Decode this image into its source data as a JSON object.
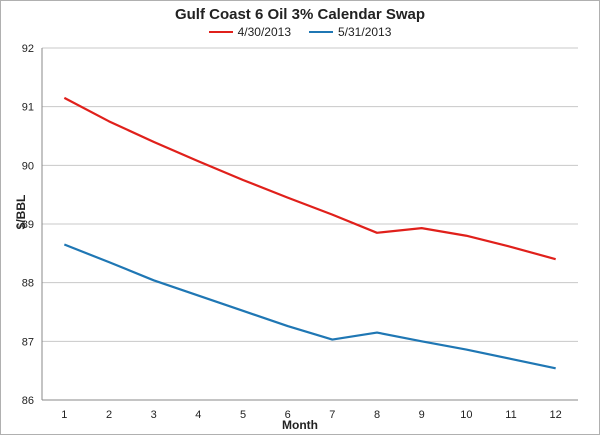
{
  "chart_data": {
    "type": "line",
    "title": "Gulf Coast 6 Oil 3% Calendar Swap",
    "xlabel": "Month",
    "ylabel": "$/BBL",
    "x": [
      1,
      2,
      3,
      4,
      5,
      6,
      7,
      8,
      9,
      10,
      11,
      12
    ],
    "ylim": [
      86,
      92
    ],
    "yticks": [
      86,
      87,
      88,
      89,
      90,
      91,
      92
    ],
    "grid": true,
    "legend_position": "top",
    "series": [
      {
        "name": "4/30/2013",
        "color": "#e0201b",
        "values": [
          91.15,
          90.75,
          90.4,
          90.07,
          89.75,
          89.45,
          89.16,
          88.85,
          88.93,
          88.8,
          88.61,
          88.4
        ]
      },
      {
        "name": "5/31/2013",
        "color": "#1f77b4",
        "values": [
          88.65,
          88.35,
          88.04,
          87.78,
          87.52,
          87.26,
          87.03,
          87.15,
          87.0,
          86.86,
          86.7,
          86.54
        ]
      }
    ]
  }
}
